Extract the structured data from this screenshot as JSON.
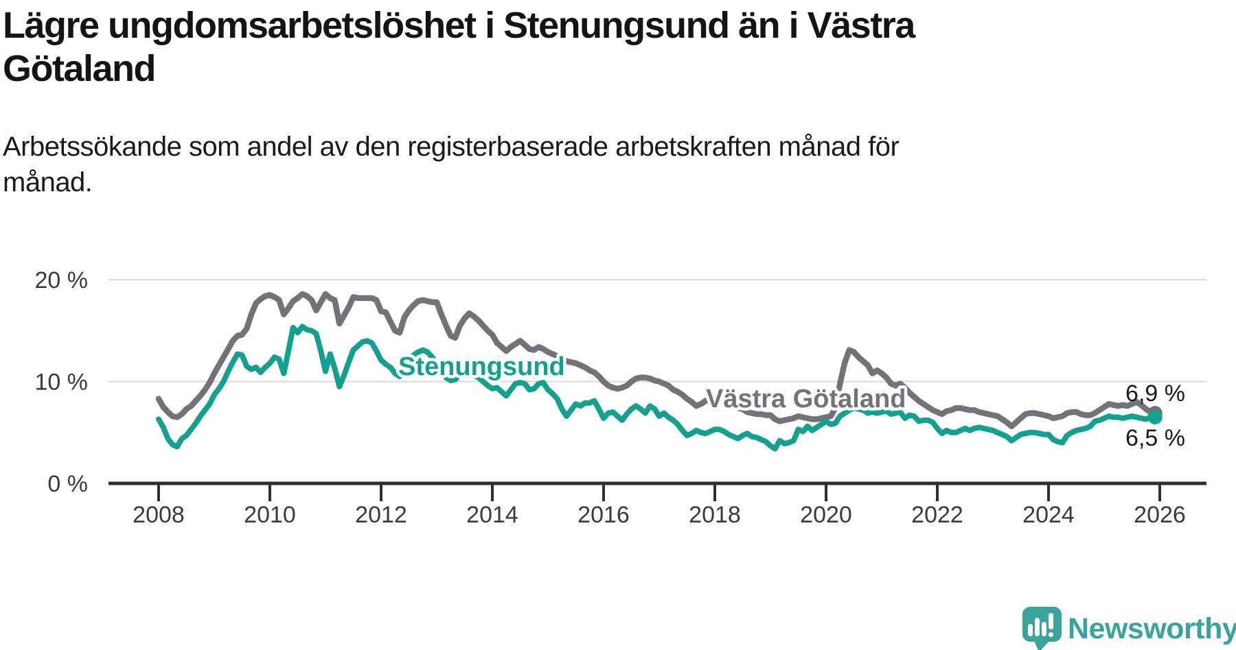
{
  "title_lines": [
    "Lägre ungdomsarbetslöshet i Stenungsund än i Västra",
    "Götaland"
  ],
  "subtitle_lines": [
    "Arbetssökande som andel av den registerbaserade arbetskraften månad för",
    "månad."
  ],
  "colors": {
    "stenungsund": "#14a08f",
    "vastra_gotaland": "#747279",
    "gridline": "#d8d8d8",
    "axis": "#2f2f2f",
    "tick_text": "#3a3a3a",
    "brand_teal": "#3ba39c"
  },
  "branding": {
    "logo_icon": "newsworthy-speech-bubble-bar-chart-icon",
    "logo_text": "Newsworthy"
  },
  "chart_data": {
    "type": "line",
    "title": "Lägre ungdomsarbetslöshet i Stenungsund än i Västra Götaland",
    "subtitle": "Arbetssökande som andel av den registerbaserade arbetskraften månad för månad.",
    "x_unit": "month",
    "x_start": "2008-01",
    "x_end": "2025-12",
    "xticks": [
      "2008",
      "2010",
      "2012",
      "2014",
      "2016",
      "2018",
      "2020",
      "2022",
      "2024",
      "2026"
    ],
    "yticks": [
      {
        "label": "0 %",
        "value": 0
      },
      {
        "label": "10 %",
        "value": 10
      },
      {
        "label": "20 %",
        "value": 20
      }
    ],
    "ylim": [
      0,
      22
    ],
    "grid": "horizontal-only",
    "legend_position": "inline-labels",
    "series": [
      {
        "name": "Stenungsund",
        "color": "#14a08f",
        "end_label": "6,5 %",
        "end_value": 6.5,
        "values": [
          6.3,
          5.5,
          4.4,
          3.8,
          3.6,
          4.4,
          4.7,
          5.3,
          5.9,
          6.6,
          7.2,
          7.8,
          8.7,
          9.3,
          10.0,
          11.0,
          11.9,
          12.7,
          12.6,
          11.5,
          11.2,
          11.4,
          10.9,
          11.4,
          11.8,
          12.4,
          12.2,
          10.8,
          13.0,
          15.3,
          14.8,
          15.4,
          15.1,
          15.0,
          14.7,
          13.0,
          11.0,
          12.7,
          11.3,
          9.5,
          10.6,
          11.9,
          13.1,
          13.5,
          13.9,
          14.0,
          13.8,
          13.0,
          12.1,
          11.7,
          11.4,
          10.8,
          10.5,
          11.2,
          11.9,
          12.6,
          12.9,
          13.1,
          12.9,
          12.4,
          11.6,
          10.9,
          10.4,
          10.1,
          10.2,
          10.7,
          11.0,
          10.9,
          10.6,
          10.4,
          10.0,
          9.6,
          9.3,
          9.4,
          9.0,
          8.6,
          9.2,
          9.8,
          9.9,
          9.8,
          9.2,
          9.3,
          9.8,
          9.9,
          9.2,
          8.8,
          8.3,
          7.3,
          6.6,
          7.2,
          7.8,
          7.6,
          7.9,
          7.9,
          8.1,
          7.3,
          6.4,
          6.9,
          7.0,
          6.6,
          6.2,
          6.8,
          7.3,
          7.6,
          7.3,
          6.9,
          7.6,
          7.3,
          6.6,
          6.9,
          6.5,
          6.2,
          5.8,
          5.2,
          4.7,
          4.9,
          5.2,
          5.0,
          4.9,
          5.1,
          5.3,
          5.3,
          5.1,
          4.8,
          4.6,
          4.4,
          4.7,
          4.9,
          4.6,
          4.5,
          4.3,
          4.1,
          3.7,
          3.4,
          4.2,
          3.9,
          4.0,
          4.2,
          5.3,
          5.1,
          5.6,
          5.2,
          5.5,
          5.8,
          6.1,
          5.8,
          5.9,
          6.6,
          6.9,
          7.2,
          7.4,
          7.3,
          7.2,
          6.9,
          7.0,
          6.9,
          7.0,
          7.1,
          6.8,
          6.9,
          7.0,
          6.4,
          6.7,
          6.6,
          6.1,
          6.2,
          6.2,
          6.0,
          5.4,
          4.9,
          5.2,
          5.0,
          5.0,
          5.2,
          5.4,
          5.2,
          5.4,
          5.5,
          5.4,
          5.3,
          5.2,
          5.0,
          4.8,
          4.6,
          4.2,
          4.5,
          4.8,
          4.9,
          5.0,
          5.0,
          4.9,
          4.8,
          4.8,
          4.3,
          4.1,
          4.0,
          4.7,
          5.0,
          5.2,
          5.3,
          5.4,
          5.6,
          6.1,
          6.2,
          6.4,
          6.6,
          6.5,
          6.5,
          6.4,
          6.5,
          6.6,
          6.5,
          6.4,
          6.3,
          6.5,
          6.5
        ]
      },
      {
        "name": "Västra Götaland",
        "color": "#747279",
        "end_label": "6,9 %",
        "end_value": 6.9,
        "values": [
          8.3,
          7.5,
          7.0,
          6.6,
          6.5,
          6.8,
          7.3,
          7.6,
          8.1,
          8.6,
          9.2,
          9.9,
          10.8,
          11.6,
          12.4,
          13.2,
          14.0,
          14.5,
          14.6,
          15.2,
          16.6,
          17.7,
          18.1,
          18.4,
          18.5,
          18.3,
          18.0,
          16.6,
          17.2,
          17.9,
          18.2,
          18.6,
          18.4,
          18.0,
          17.0,
          17.8,
          18.6,
          18.2,
          18.0,
          15.7,
          16.5,
          17.3,
          18.3,
          18.2,
          18.2,
          18.2,
          18.2,
          18.0,
          16.9,
          16.8,
          15.9,
          15.0,
          14.8,
          16.3,
          17.0,
          17.5,
          17.9,
          18.0,
          17.9,
          17.8,
          17.8,
          16.6,
          15.5,
          14.5,
          14.3,
          15.5,
          16.2,
          16.7,
          16.4,
          16.0,
          15.5,
          15.0,
          14.6,
          13.8,
          13.4,
          13.0,
          13.4,
          13.7,
          14.0,
          13.6,
          13.2,
          13.1,
          13.4,
          13.2,
          12.9,
          12.7,
          12.5,
          12.2,
          12.0,
          11.9,
          11.8,
          11.6,
          11.4,
          11.1,
          10.9,
          10.5,
          10.0,
          9.6,
          9.4,
          9.3,
          9.4,
          9.6,
          10.0,
          10.3,
          10.4,
          10.4,
          10.3,
          10.1,
          10.0,
          9.8,
          9.6,
          9.2,
          9.0,
          8.7,
          8.3,
          8.0,
          7.6,
          7.8,
          8.1,
          8.4,
          8.5,
          8.1,
          7.9,
          7.6,
          7.5,
          7.4,
          7.3,
          7.0,
          6.9,
          6.8,
          6.8,
          6.7,
          6.7,
          6.3,
          6.1,
          6.2,
          6.3,
          6.4,
          6.6,
          6.5,
          6.4,
          6.3,
          6.3,
          6.4,
          6.5,
          6.6,
          7.4,
          9.8,
          11.8,
          13.1,
          12.9,
          12.4,
          12.0,
          11.6,
          10.8,
          11.1,
          10.8,
          10.4,
          9.8,
          9.6,
          9.8,
          9.4,
          8.9,
          8.5,
          8.1,
          7.8,
          7.5,
          7.2,
          7.0,
          6.8,
          7.1,
          7.2,
          7.4,
          7.4,
          7.3,
          7.2,
          7.2,
          7.0,
          6.9,
          6.8,
          6.7,
          6.6,
          6.3,
          6.0,
          5.6,
          6.0,
          6.4,
          6.8,
          6.9,
          6.9,
          6.8,
          6.7,
          6.6,
          6.4,
          6.5,
          6.6,
          6.9,
          7.0,
          7.0,
          6.8,
          6.7,
          6.7,
          6.9,
          7.2,
          7.5,
          7.8,
          7.7,
          7.6,
          7.7,
          7.6,
          7.8,
          8.0,
          7.7,
          7.3,
          7.0,
          6.9
        ]
      }
    ]
  }
}
